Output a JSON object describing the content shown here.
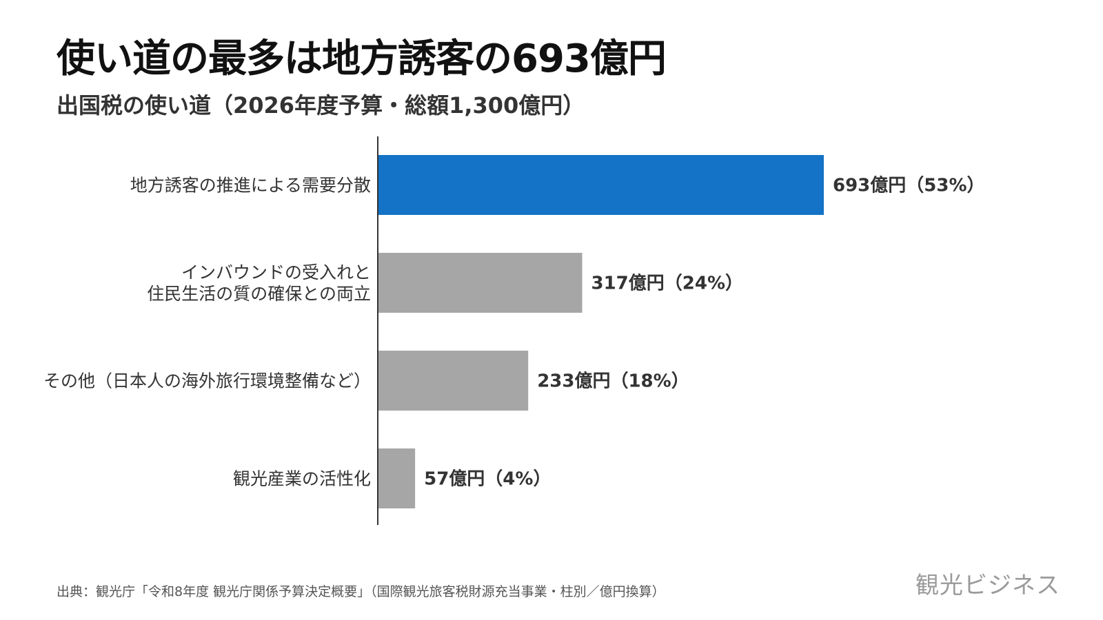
{
  "title": "使い道の最多は地方誘客の693億円",
  "subtitle": "出国税の使い道（2026年度予算・総額1,300億円）",
  "source": "出典：観光庁「令和8年度 観光庁関係予算決定概要」（国際観光旅客税財源充当事業・柱別／億円換算）",
  "logo": "観光ビジネス",
  "colors": {
    "highlight": "#1473c6",
    "default": "#a6a6a6",
    "axis": "#333333"
  },
  "chart_data": {
    "type": "bar",
    "orientation": "horizontal",
    "categories": [
      [
        "地方誘客の推進による需要分散"
      ],
      [
        "インバウンドの受入れと",
        "住民生活の質の確保との両立"
      ],
      [
        "その他（日本人の海外旅行環境整備など）"
      ],
      [
        "観光産業の活性化"
      ]
    ],
    "values": [
      693,
      317,
      233,
      57
    ],
    "data_labels": [
      "693億円（53%）",
      "317億円（24%）",
      "233億円（18%）",
      "57億円（4%）"
    ],
    "highlight_index": 0,
    "unit": "億円",
    "xlim": [
      0,
      693
    ],
    "grid": false,
    "legend": "none"
  }
}
